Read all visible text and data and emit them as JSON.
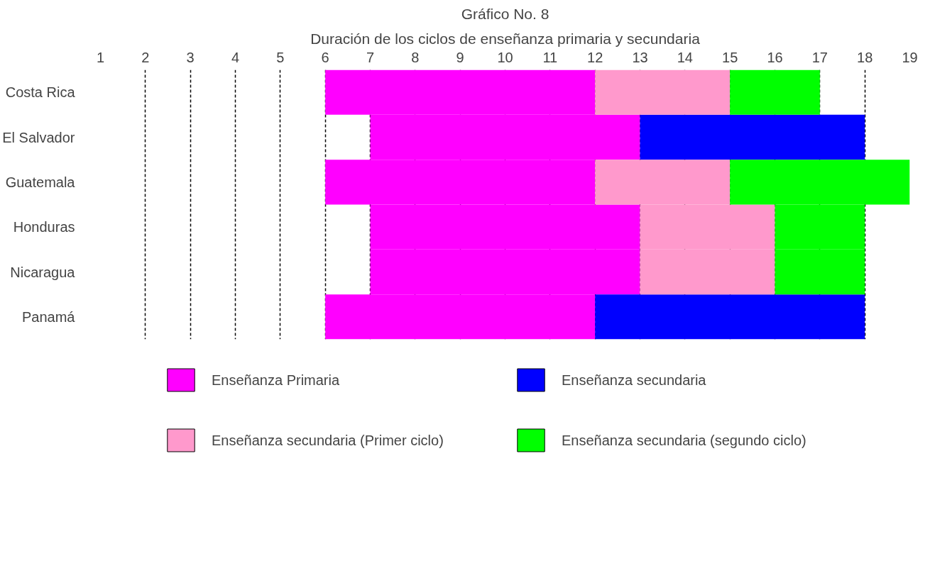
{
  "chart_data": {
    "type": "bar",
    "title": "Gráfico No. 8",
    "subtitle": "Duración de los ciclos de enseñanza primaria y secundaria",
    "orientation": "horizontal",
    "categories": [
      "Costa Rica",
      "El Salvador",
      "Guatemala",
      "Honduras",
      "Nicaragua",
      "Panamá"
    ],
    "series": [
      {
        "name": "Enseñanza Primaria",
        "color": "#ff00ff",
        "base": [
          6,
          7,
          6,
          7,
          7,
          6
        ],
        "values": [
          6,
          6,
          6,
          6,
          6,
          6
        ]
      },
      {
        "name": "Enseñanza secundaria",
        "color": "#0000ff",
        "base": [
          null,
          13,
          null,
          null,
          null,
          12
        ],
        "values": [
          null,
          5,
          null,
          null,
          null,
          6
        ]
      },
      {
        "name": "Enseñanza secundaria (Primer ciclo)",
        "color": "#ff99cc",
        "base": [
          12,
          null,
          12,
          13,
          13,
          null
        ],
        "values": [
          3,
          null,
          3,
          3,
          3,
          null
        ]
      },
      {
        "name": "Enseñanza secundaria (segundo ciclo)",
        "color": "#00ff00",
        "base": [
          15,
          null,
          15,
          16,
          16,
          null
        ],
        "values": [
          2,
          null,
          4,
          2,
          2,
          null
        ]
      }
    ],
    "xlim": [
      1,
      19
    ],
    "xticks": [
      1,
      2,
      3,
      4,
      5,
      6,
      7,
      8,
      9,
      10,
      11,
      12,
      13,
      14,
      15,
      16,
      17,
      18,
      19
    ],
    "grid": "x",
    "legend": "bottom"
  }
}
